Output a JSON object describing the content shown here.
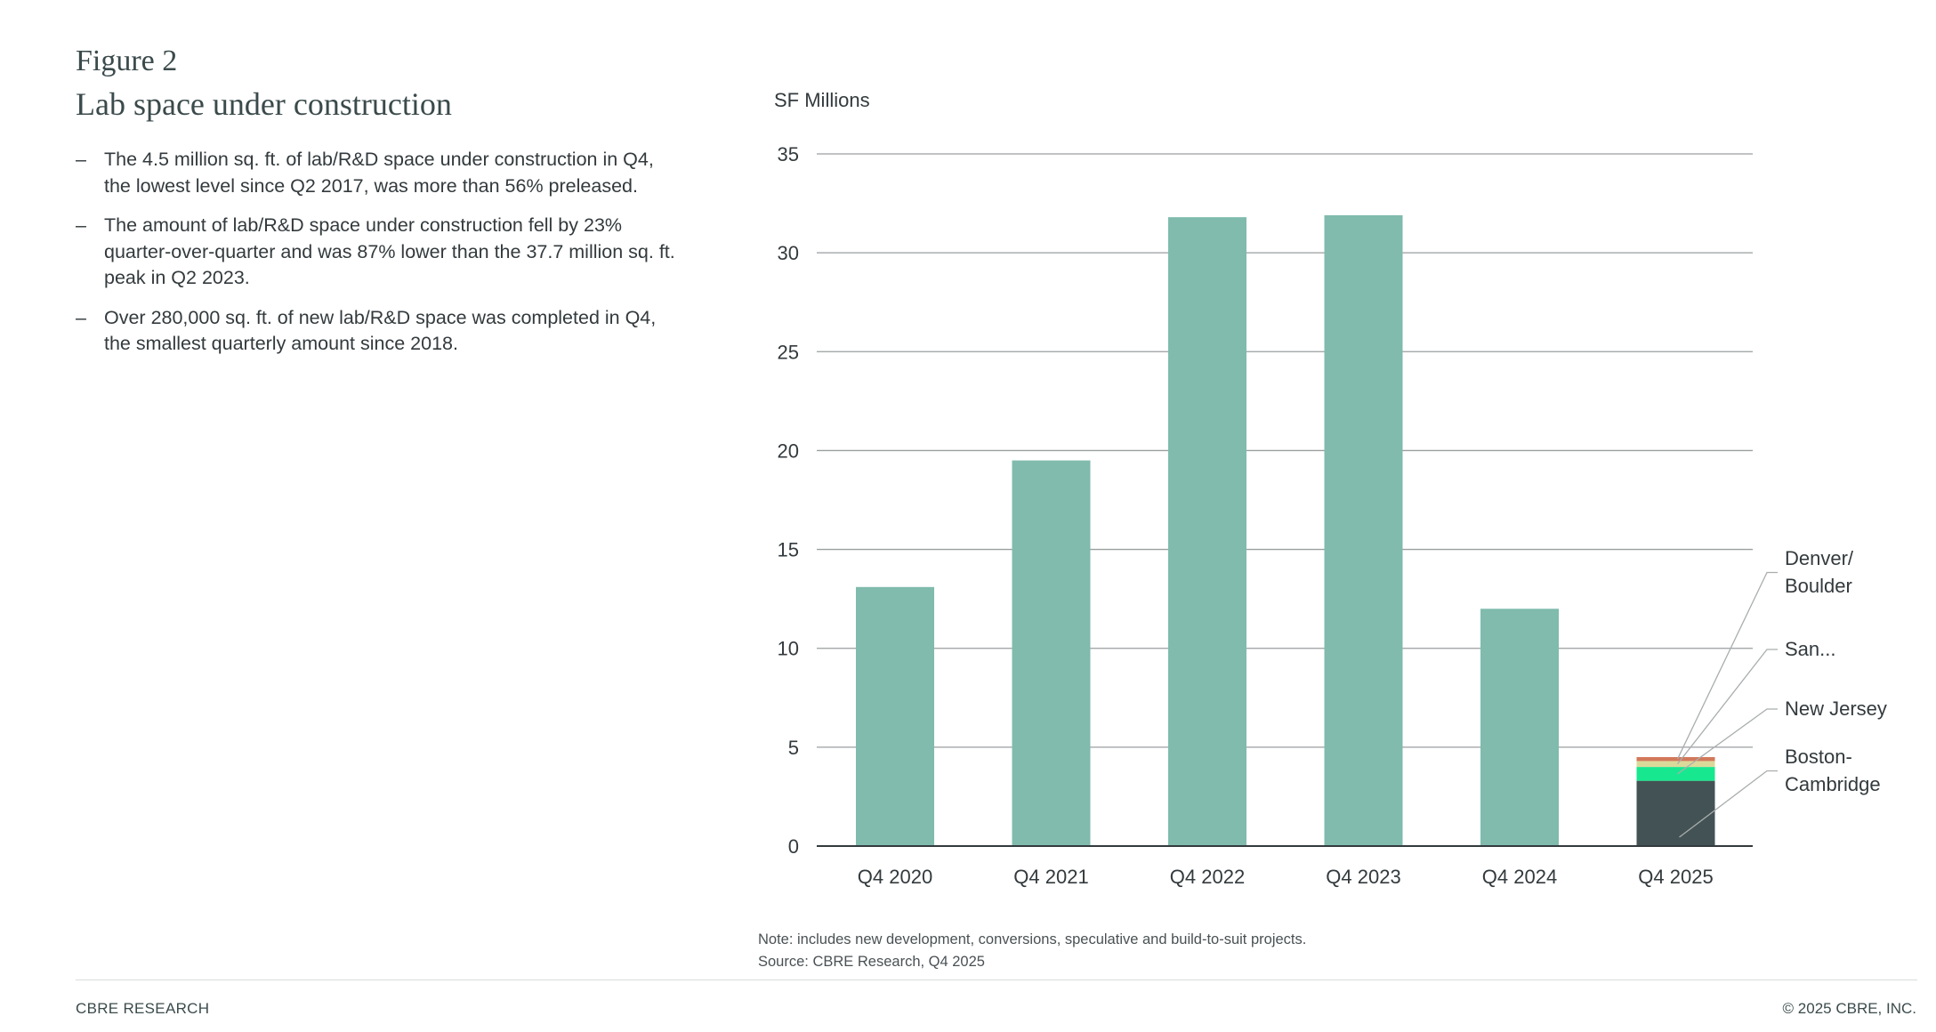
{
  "figure": {
    "label": "Figure 2",
    "title": "Lab space under construction"
  },
  "bullets": [
    "The 4.5 million sq. ft. of lab/R&D space under construction in Q4, the lowest level since Q2 2017, was more than 56% preleased.",
    "The amount of lab/R&D space under construction fell by 23% quarter-over-quarter and was 87% lower than the 37.7 million sq. ft. peak in Q2 2023.",
    "Over 280,000 sq. ft. of new lab/R&D space was completed in Q4, the smallest quarterly amount since 2018."
  ],
  "bullet_dash": "–",
  "chart_data": {
    "type": "bar",
    "ylabel": "SF Millions",
    "ylim": [
      0,
      35
    ],
    "yticks": [
      0,
      5,
      10,
      15,
      20,
      25,
      30,
      35
    ],
    "grid": true,
    "categories": [
      "Q4 2020",
      "Q4 2021",
      "Q4 2022",
      "Q4 2023",
      "Q4 2024",
      "Q4 2025"
    ],
    "values": [
      13.1,
      19.5,
      31.8,
      31.9,
      12.0,
      null
    ],
    "bar_color": "#80bbad",
    "stacked_last": {
      "category": "Q4 2025",
      "segments": [
        {
          "name": "Boston-Cambridge",
          "value": 3.3,
          "color": "#435254"
        },
        {
          "name": "New Jersey",
          "value": 0.7,
          "color": "#17e88f"
        },
        {
          "name": "San...",
          "value": 0.3,
          "color": "#dbd99a"
        },
        {
          "name": "Denver/Boulder",
          "value": 0.2,
          "color": "#d2785a"
        }
      ],
      "callouts": [
        {
          "segment": "Boston-Cambridge",
          "lines": [
            "Boston-",
            "Cambridge"
          ]
        },
        {
          "segment": "New Jersey",
          "lines": [
            "New Jersey"
          ]
        },
        {
          "segment": "San...",
          "lines": [
            "San..."
          ]
        },
        {
          "segment": "Denver/Boulder",
          "lines": [
            "Denver/",
            "Boulder"
          ]
        }
      ]
    }
  },
  "note": "Note: includes new development, conversions, speculative and build-to-suit projects.",
  "source": "Source: CBRE Research, Q4 2025",
  "footer": {
    "left": "CBRE RESEARCH",
    "right": "© 2025 CBRE, INC."
  }
}
